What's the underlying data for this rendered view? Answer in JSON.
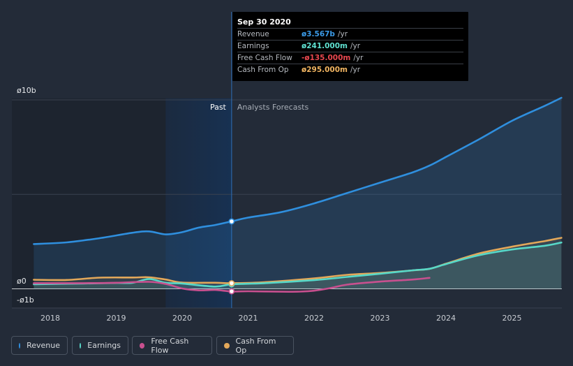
{
  "tooltip": {
    "title": "Sep 30 2020",
    "rows": [
      {
        "label": "Revenue",
        "value": "ø3.567b",
        "unit": "/yr",
        "color": "#3b9be8"
      },
      {
        "label": "Earnings",
        "value": "ø241.000m",
        "unit": "/yr",
        "color": "#5fe0d0"
      },
      {
        "label": "Free Cash Flow",
        "value": "-ø135.000m",
        "unit": "/yr",
        "color": "#e8474e"
      },
      {
        "label": "Cash From Op",
        "value": "ø295.000m",
        "unit": "/yr",
        "color": "#f0b461"
      }
    ]
  },
  "labels": {
    "past": "Past",
    "forecast": "Analysts Forecasts"
  },
  "legend": [
    {
      "label": "Revenue",
      "color": "#2f8fde"
    },
    {
      "label": "Earnings",
      "color": "#57d8c8"
    },
    {
      "label": "Free Cash Flow",
      "color": "#c8508f"
    },
    {
      "label": "Cash From Op",
      "color": "#e3a85a"
    }
  ],
  "chart_data": {
    "type": "line",
    "y_ticks": [
      {
        "label": "ø10b",
        "value": 10
      },
      {
        "label": "ø0",
        "value": 0
      },
      {
        "label": "-ø1b",
        "value": -1
      }
    ],
    "ylim": [
      -1,
      10.3
    ],
    "xlim": [
      2017.5,
      2025.75
    ],
    "x_ticks": [
      "2018",
      "2019",
      "2020",
      "2021",
      "2022",
      "2023",
      "2024",
      "2025"
    ],
    "gridlines": [
      10,
      5,
      0
    ],
    "past_end": 2020.75,
    "highlight_start": 2019.75,
    "series": [
      {
        "name": "Revenue",
        "color": "#2f8fde",
        "points": [
          [
            2017.75,
            2.37
          ],
          [
            2018.25,
            2.46
          ],
          [
            2018.75,
            2.68
          ],
          [
            2019.25,
            2.97
          ],
          [
            2019.5,
            3.04
          ],
          [
            2019.75,
            2.88
          ],
          [
            2020.0,
            3.0
          ],
          [
            2020.25,
            3.24
          ],
          [
            2020.5,
            3.38
          ],
          [
            2020.75,
            3.57
          ],
          [
            2021.0,
            3.77
          ],
          [
            2021.5,
            4.06
          ],
          [
            2022.0,
            4.52
          ],
          [
            2022.5,
            5.07
          ],
          [
            2023.0,
            5.62
          ],
          [
            2023.5,
            6.17
          ],
          [
            2023.75,
            6.52
          ],
          [
            2024.0,
            6.98
          ],
          [
            2024.5,
            7.91
          ],
          [
            2025.0,
            8.89
          ],
          [
            2025.5,
            9.69
          ],
          [
            2025.75,
            10.11
          ]
        ]
      },
      {
        "name": "Earnings",
        "color": "#57d8c8",
        "points": [
          [
            2017.75,
            0.24
          ],
          [
            2018.5,
            0.28
          ],
          [
            2019.0,
            0.31
          ],
          [
            2019.25,
            0.32
          ],
          [
            2019.5,
            0.52
          ],
          [
            2019.75,
            0.32
          ],
          [
            2020.0,
            0.28
          ],
          [
            2020.5,
            0.12
          ],
          [
            2020.75,
            0.24
          ],
          [
            2021.25,
            0.3
          ],
          [
            2022.0,
            0.46
          ],
          [
            2022.5,
            0.63
          ],
          [
            2023.0,
            0.8
          ],
          [
            2023.5,
            0.98
          ],
          [
            2023.75,
            1.06
          ],
          [
            2024.0,
            1.31
          ],
          [
            2024.5,
            1.78
          ],
          [
            2025.0,
            2.08
          ],
          [
            2025.5,
            2.28
          ],
          [
            2025.75,
            2.45
          ]
        ]
      },
      {
        "name": "Free Cash Flow",
        "color": "#c8508f",
        "points": [
          [
            2017.75,
            0.3
          ],
          [
            2018.5,
            0.3
          ],
          [
            2019.0,
            0.32
          ],
          [
            2019.5,
            0.37
          ],
          [
            2019.75,
            0.26
          ],
          [
            2020.0,
            0.02
          ],
          [
            2020.25,
            -0.08
          ],
          [
            2020.5,
            -0.06
          ],
          [
            2020.75,
            -0.14
          ],
          [
            2021.0,
            -0.13
          ],
          [
            2021.5,
            -0.15
          ],
          [
            2021.75,
            -0.15
          ],
          [
            2022.0,
            -0.1
          ],
          [
            2022.25,
            0.04
          ],
          [
            2022.5,
            0.22
          ],
          [
            2023.0,
            0.38
          ],
          [
            2023.5,
            0.49
          ],
          [
            2023.75,
            0.58
          ]
        ]
      },
      {
        "name": "Cash From Op",
        "color": "#e3a85a",
        "points": [
          [
            2017.75,
            0.48
          ],
          [
            2018.25,
            0.47
          ],
          [
            2018.75,
            0.59
          ],
          [
            2019.25,
            0.6
          ],
          [
            2019.5,
            0.61
          ],
          [
            2019.75,
            0.49
          ],
          [
            2020.0,
            0.33
          ],
          [
            2020.5,
            0.32
          ],
          [
            2020.75,
            0.3
          ],
          [
            2021.25,
            0.35
          ],
          [
            2022.0,
            0.55
          ],
          [
            2022.5,
            0.74
          ],
          [
            2023.0,
            0.84
          ],
          [
            2023.5,
            0.98
          ],
          [
            2023.75,
            1.06
          ],
          [
            2024.0,
            1.33
          ],
          [
            2024.5,
            1.87
          ],
          [
            2025.0,
            2.23
          ],
          [
            2025.5,
            2.53
          ],
          [
            2025.75,
            2.7
          ]
        ]
      }
    ],
    "markers": [
      {
        "series": "Revenue",
        "x": 2020.75,
        "y": 3.567
      },
      {
        "series": "Earnings",
        "x": 2020.75,
        "y": 0.241
      },
      {
        "series": "Free Cash Flow",
        "x": 2020.75,
        "y": -0.135
      },
      {
        "series": "Cash From Op",
        "x": 2020.75,
        "y": 0.295
      }
    ]
  }
}
